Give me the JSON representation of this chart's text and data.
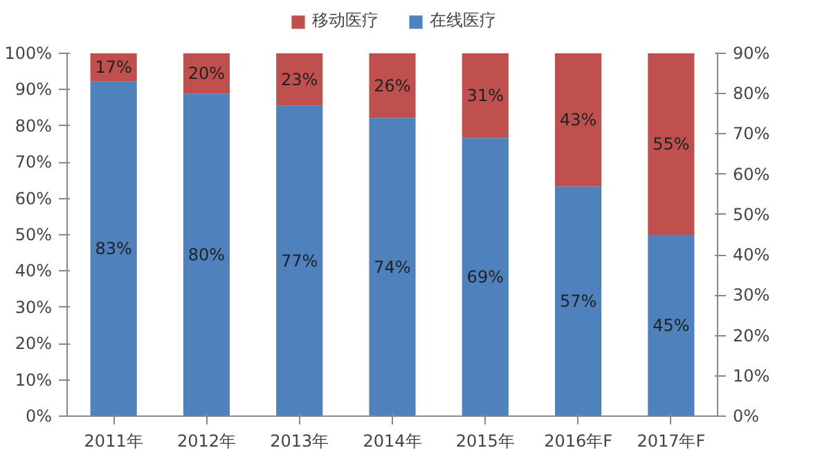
{
  "chart_data": {
    "type": "bar",
    "stacked": true,
    "categories": [
      "2011年",
      "2012年",
      "2013年",
      "2014年",
      "2015年",
      "2016年F",
      "2017年F"
    ],
    "series": [
      {
        "name": "在线医疗",
        "color": "#4f81bd",
        "values": [
          83,
          80,
          77,
          74,
          69,
          57,
          45
        ],
        "value_labels": [
          "83%",
          "80%",
          "77%",
          "74%",
          "69%",
          "57%",
          "45%"
        ],
        "axis": "y2"
      },
      {
        "name": "移动医疗",
        "color": "#c0504d",
        "values": [
          17,
          20,
          23,
          26,
          31,
          43,
          55
        ],
        "value_labels": [
          "17%",
          "20%",
          "23%",
          "26%",
          "31%",
          "43%",
          "55%"
        ],
        "axis": "y2"
      }
    ],
    "ylim": [
      0,
      100
    ],
    "yticks": [
      {
        "value": 0,
        "label": "0%"
      },
      {
        "value": 10,
        "label": "10%"
      },
      {
        "value": 20,
        "label": "20%"
      },
      {
        "value": 30,
        "label": "30%"
      },
      {
        "value": 40,
        "label": "40%"
      },
      {
        "value": 50,
        "label": "50%"
      },
      {
        "value": 60,
        "label": "60%"
      },
      {
        "value": 70,
        "label": "70%"
      },
      {
        "value": 80,
        "label": "80%"
      },
      {
        "value": 90,
        "label": "90%"
      },
      {
        "value": 100,
        "label": "100%"
      }
    ],
    "y2lim": [
      0,
      90
    ],
    "y2ticks": [
      {
        "value": 0,
        "label": "0%"
      },
      {
        "value": 10,
        "label": "10%"
      },
      {
        "value": 20,
        "label": "20%"
      },
      {
        "value": 30,
        "label": "30%"
      },
      {
        "value": 40,
        "label": "40%"
      },
      {
        "value": 50,
        "label": "50%"
      },
      {
        "value": 60,
        "label": "60%"
      },
      {
        "value": 70,
        "label": "70%"
      },
      {
        "value": 80,
        "label": "80%"
      },
      {
        "value": 90,
        "label": "90%"
      }
    ],
    "grid": false,
    "legend": "top"
  }
}
